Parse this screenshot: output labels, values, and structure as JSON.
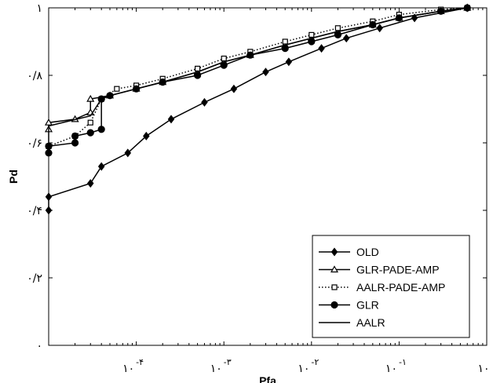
{
  "chart_data": {
    "type": "line",
    "xlabel": "Pfa",
    "ylabel": "Pd",
    "x_scale": "log",
    "xlim": [
      1e-05,
      1
    ],
    "ylim": [
      0,
      1
    ],
    "grid": false,
    "legend_position": "bottom-right",
    "x_ticks": [
      {
        "value": 0.0001,
        "base": "۱۰",
        "exp": "-۴"
      },
      {
        "value": 0.001,
        "base": "۱۰",
        "exp": "-۳"
      },
      {
        "value": 0.01,
        "base": "۱۰",
        "exp": "-۲"
      },
      {
        "value": 0.1,
        "base": "۱۰",
        "exp": "-۱"
      },
      {
        "value": 1,
        "base": "۱۰",
        "exp": ""
      }
    ],
    "y_ticks": [
      {
        "value": 0,
        "label": "۰"
      },
      {
        "value": 0.2,
        "label": "۰/۲"
      },
      {
        "value": 0.4,
        "label": "۰/۴"
      },
      {
        "value": 0.6,
        "label": "۰/۶"
      },
      {
        "value": 0.8,
        "label": "۰/۸"
      },
      {
        "value": 1,
        "label": "۱"
      }
    ],
    "series": [
      {
        "name": "OLD",
        "marker": "diamond",
        "line": "solid",
        "x": [
          1e-05,
          1e-05,
          3e-05,
          4e-05,
          8e-05,
          0.00013,
          0.00025,
          0.0006,
          0.0013,
          0.003,
          0.0055,
          0.013,
          0.025,
          0.06,
          0.15,
          0.6
        ],
        "y": [
          0.4,
          0.44,
          0.48,
          0.53,
          0.57,
          0.62,
          0.67,
          0.72,
          0.76,
          0.81,
          0.84,
          0.88,
          0.91,
          0.94,
          0.97,
          1.0
        ]
      },
      {
        "name": "GLR-PADE-AMP",
        "marker": "triangle",
        "line": "solid",
        "x": [
          1e-05,
          1e-05,
          2e-05,
          3e-05,
          3e-05,
          5e-05,
          0.0001,
          0.0002,
          0.0005,
          0.001,
          0.002,
          0.005,
          0.01,
          0.02,
          0.05,
          0.1,
          0.3,
          0.6
        ],
        "y": [
          0.64,
          0.66,
          0.67,
          0.69,
          0.73,
          0.74,
          0.76,
          0.78,
          0.81,
          0.84,
          0.86,
          0.89,
          0.91,
          0.93,
          0.95,
          0.97,
          0.99,
          1.0
        ]
      },
      {
        "name": "AALR-PADE-AMP",
        "marker": "square",
        "line": "dotted",
        "x": [
          1e-05,
          2e-05,
          3e-05,
          4e-05,
          6e-05,
          0.0001,
          0.0002,
          0.0005,
          0.001,
          0.002,
          0.005,
          0.01,
          0.02,
          0.05,
          0.1,
          0.3,
          0.6
        ],
        "y": [
          0.59,
          0.62,
          0.66,
          0.73,
          0.76,
          0.77,
          0.79,
          0.82,
          0.85,
          0.87,
          0.9,
          0.92,
          0.94,
          0.96,
          0.98,
          0.995,
          1.0
        ]
      },
      {
        "name": "GLR",
        "marker": "circle",
        "line": "solid",
        "x": [
          1e-05,
          1e-05,
          2e-05,
          2e-05,
          3e-05,
          4e-05,
          4e-05,
          5e-05,
          0.0001,
          0.0002,
          0.0005,
          0.001,
          0.002,
          0.005,
          0.01,
          0.02,
          0.05,
          0.1,
          0.3,
          0.6
        ],
        "y": [
          0.57,
          0.59,
          0.6,
          0.62,
          0.63,
          0.64,
          0.73,
          0.74,
          0.76,
          0.78,
          0.8,
          0.83,
          0.86,
          0.88,
          0.9,
          0.92,
          0.95,
          0.97,
          0.99,
          1.0
        ]
      },
      {
        "name": "AALR",
        "marker": "none",
        "line": "solid",
        "x": [
          1e-05,
          1e-05,
          3e-05,
          4e-05,
          5e-05,
          0.0001,
          0.0002,
          0.0005,
          0.001,
          0.002,
          0.005,
          0.01,
          0.02,
          0.05,
          0.1,
          0.3,
          0.6
        ],
        "y": [
          0.59,
          0.65,
          0.68,
          0.73,
          0.74,
          0.76,
          0.78,
          0.81,
          0.84,
          0.86,
          0.89,
          0.91,
          0.93,
          0.95,
          0.97,
          0.99,
          1.0
        ]
      }
    ]
  }
}
